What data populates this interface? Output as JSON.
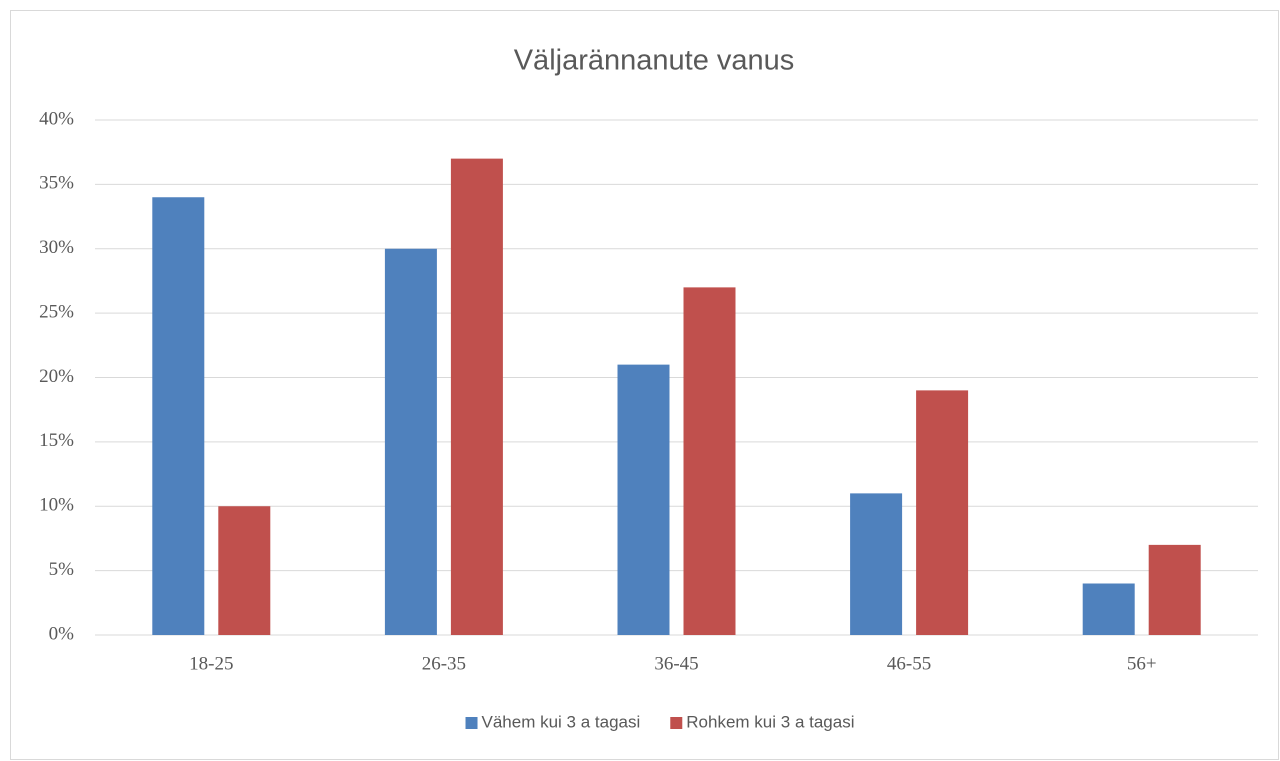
{
  "chart_data": {
    "type": "bar",
    "title": "Väljarännanute vanus",
    "categories": [
      "18-25",
      "26-35",
      "36-45",
      "46-55",
      "56+"
    ],
    "series": [
      {
        "name": "Vähem kui 3 a tagasi",
        "color": "#4f81bd",
        "values": [
          34,
          30,
          21,
          11,
          4
        ]
      },
      {
        "name": "Rohkem kui 3 a tagasi",
        "color": "#c0504d",
        "values": [
          10,
          37,
          27,
          19,
          7
        ]
      }
    ],
    "ylim": [
      0,
      40
    ],
    "yticks": [
      {
        "value": 0,
        "label": "0%"
      },
      {
        "value": 5,
        "label": "5%"
      },
      {
        "value": 10,
        "label": "10%"
      },
      {
        "value": 15,
        "label": "15%"
      },
      {
        "value": 20,
        "label": "20%"
      },
      {
        "value": 25,
        "label": "25%"
      },
      {
        "value": 30,
        "label": "30%"
      },
      {
        "value": 35,
        "label": "35%"
      },
      {
        "value": 40,
        "label": "40%"
      }
    ],
    "grid": true,
    "legend": "bottom"
  }
}
